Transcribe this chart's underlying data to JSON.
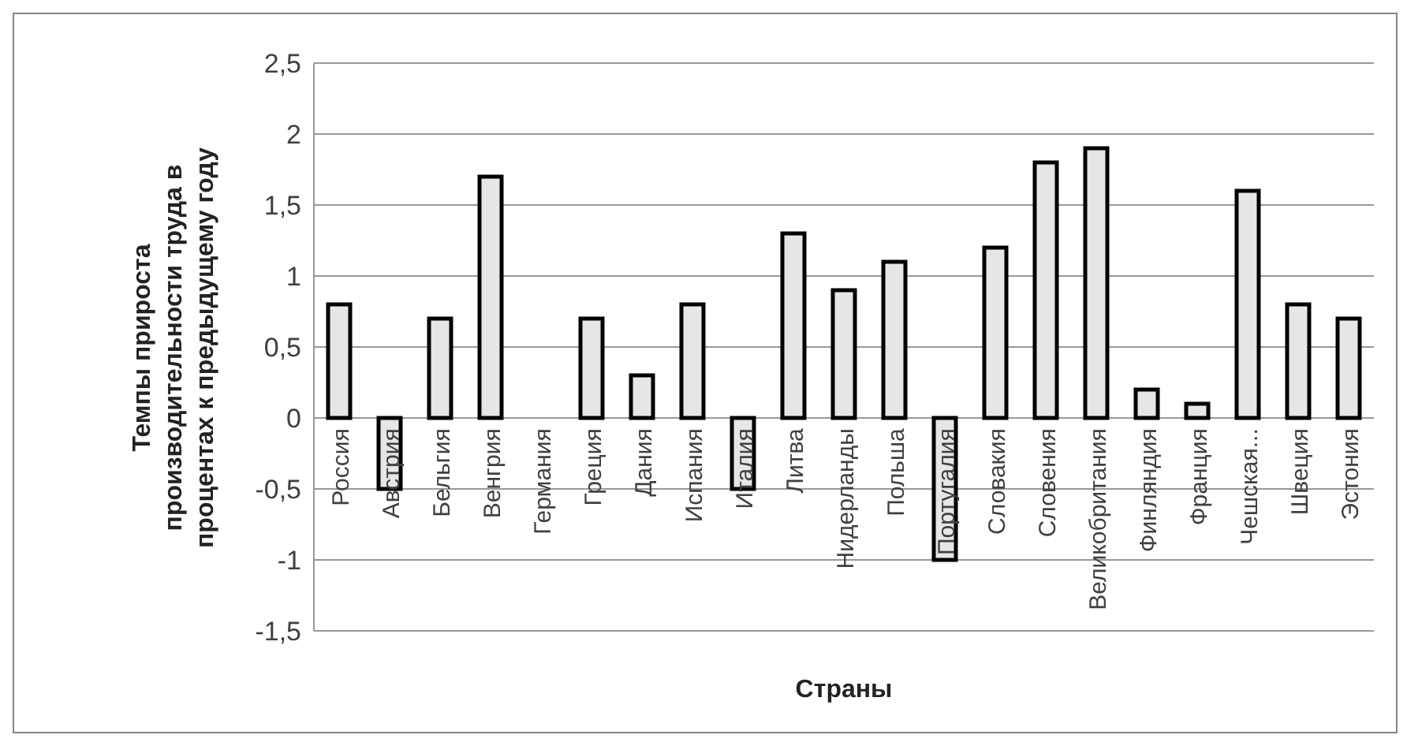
{
  "chart_data": {
    "type": "bar",
    "xlabel": "Страны",
    "ylabel": "Темпы прироста производительности труда в процентах к предыдущему году",
    "categories": [
      "Россия",
      "Австрия",
      "Бельгия",
      "Венгрия",
      "Германия",
      "Греция",
      "Дания",
      "Испания",
      "Италия",
      "Литва",
      "Нидерланды",
      "Польша",
      "Португалия",
      "Словакия",
      "Словения",
      "Великобритания",
      "Финляндия",
      "Франция",
      "Чешская...",
      "Швеция",
      "Эстония"
    ],
    "values": [
      0.8,
      -0.5,
      0.7,
      1.7,
      0,
      0.7,
      0.3,
      0.8,
      -0.5,
      1.3,
      0.9,
      1.1,
      -1.0,
      1.2,
      1.8,
      1.9,
      0.2,
      0.1,
      1.6,
      0.8,
      0.7
    ],
    "color": "#e6e6e6",
    "ylim": [
      -1.5,
      2.5
    ],
    "yticks": [
      {
        "value": -1.5,
        "label": "-1,5"
      },
      -1,
      {
        "value": -0.5,
        "label": "-0,5"
      },
      0,
      {
        "value": 0.5,
        "label": "0,5"
      },
      1,
      {
        "value": 1.5,
        "label": "1,5"
      },
      2,
      {
        "value": 2.5,
        "label": "2,5"
      }
    ],
    "grid": "y",
    "legend": false
  }
}
